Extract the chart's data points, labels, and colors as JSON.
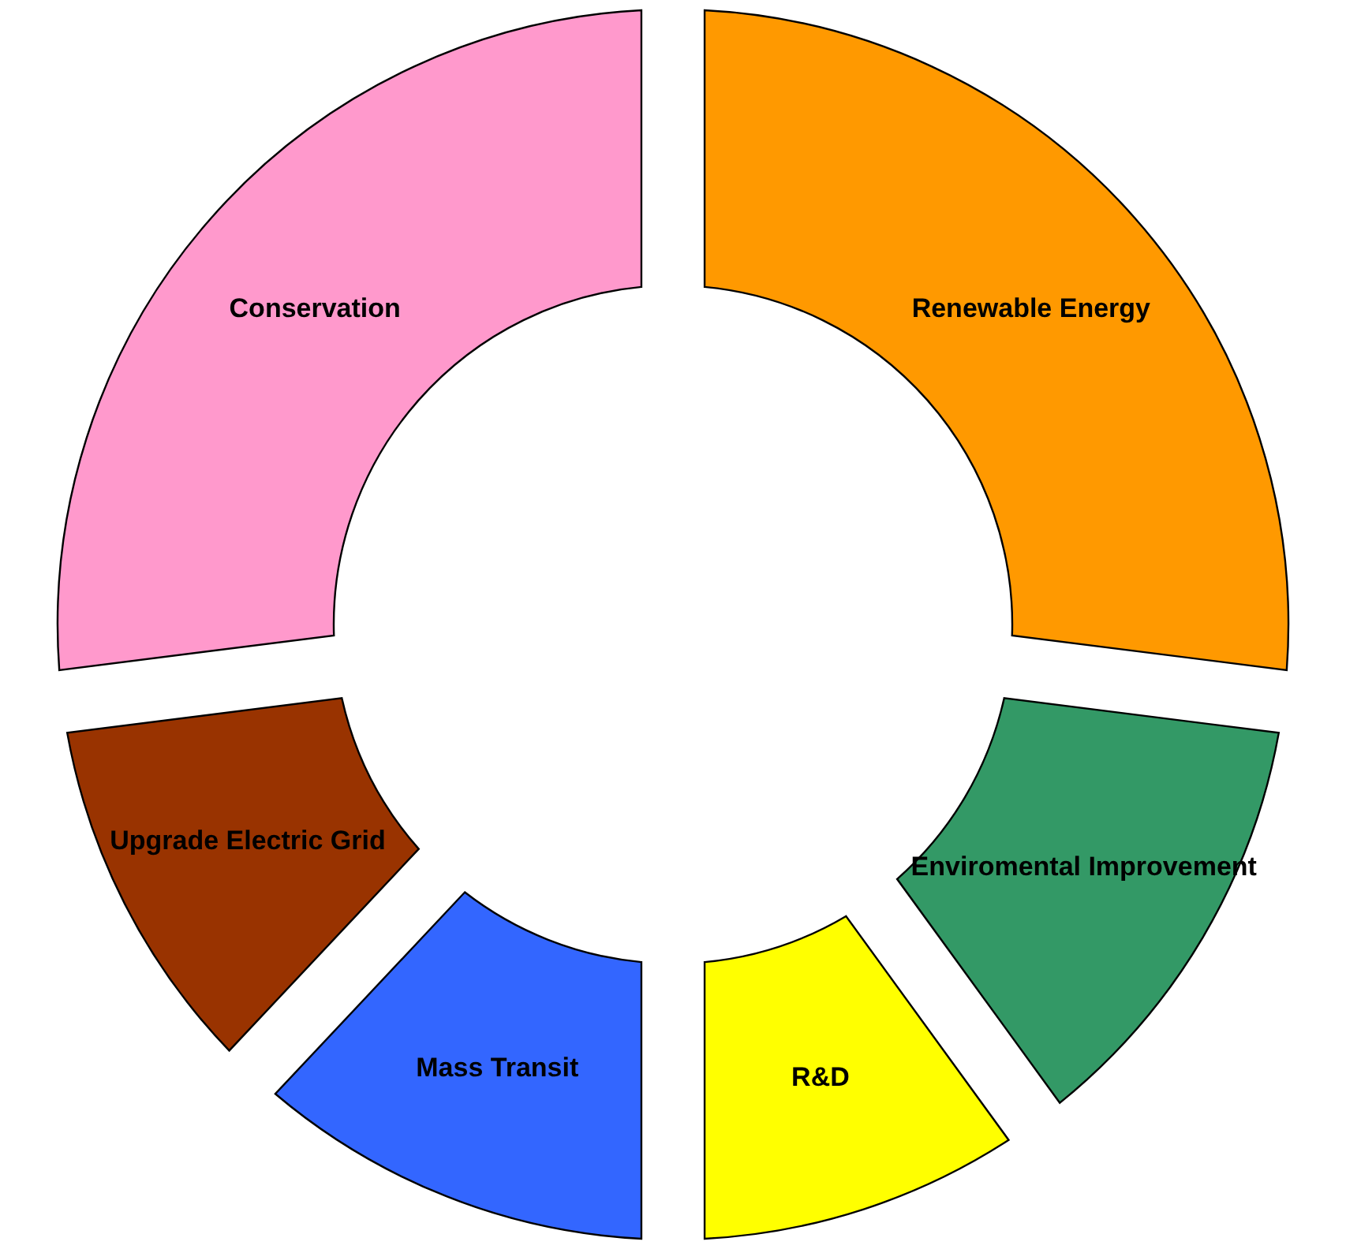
{
  "chart_data": {
    "type": "donut",
    "categories": [
      "Renewable Energy",
      "Enviromental Improvement",
      "R&D",
      "Mass Transit",
      "Upgrade Electric Grid",
      "Conservation"
    ],
    "values": [
      27,
      13,
      10,
      12,
      11,
      27
    ],
    "colors": [
      "#ff9900",
      "#339966",
      "#ffff00",
      "#3366ff",
      "#993300",
      "#ff99cc"
    ]
  }
}
